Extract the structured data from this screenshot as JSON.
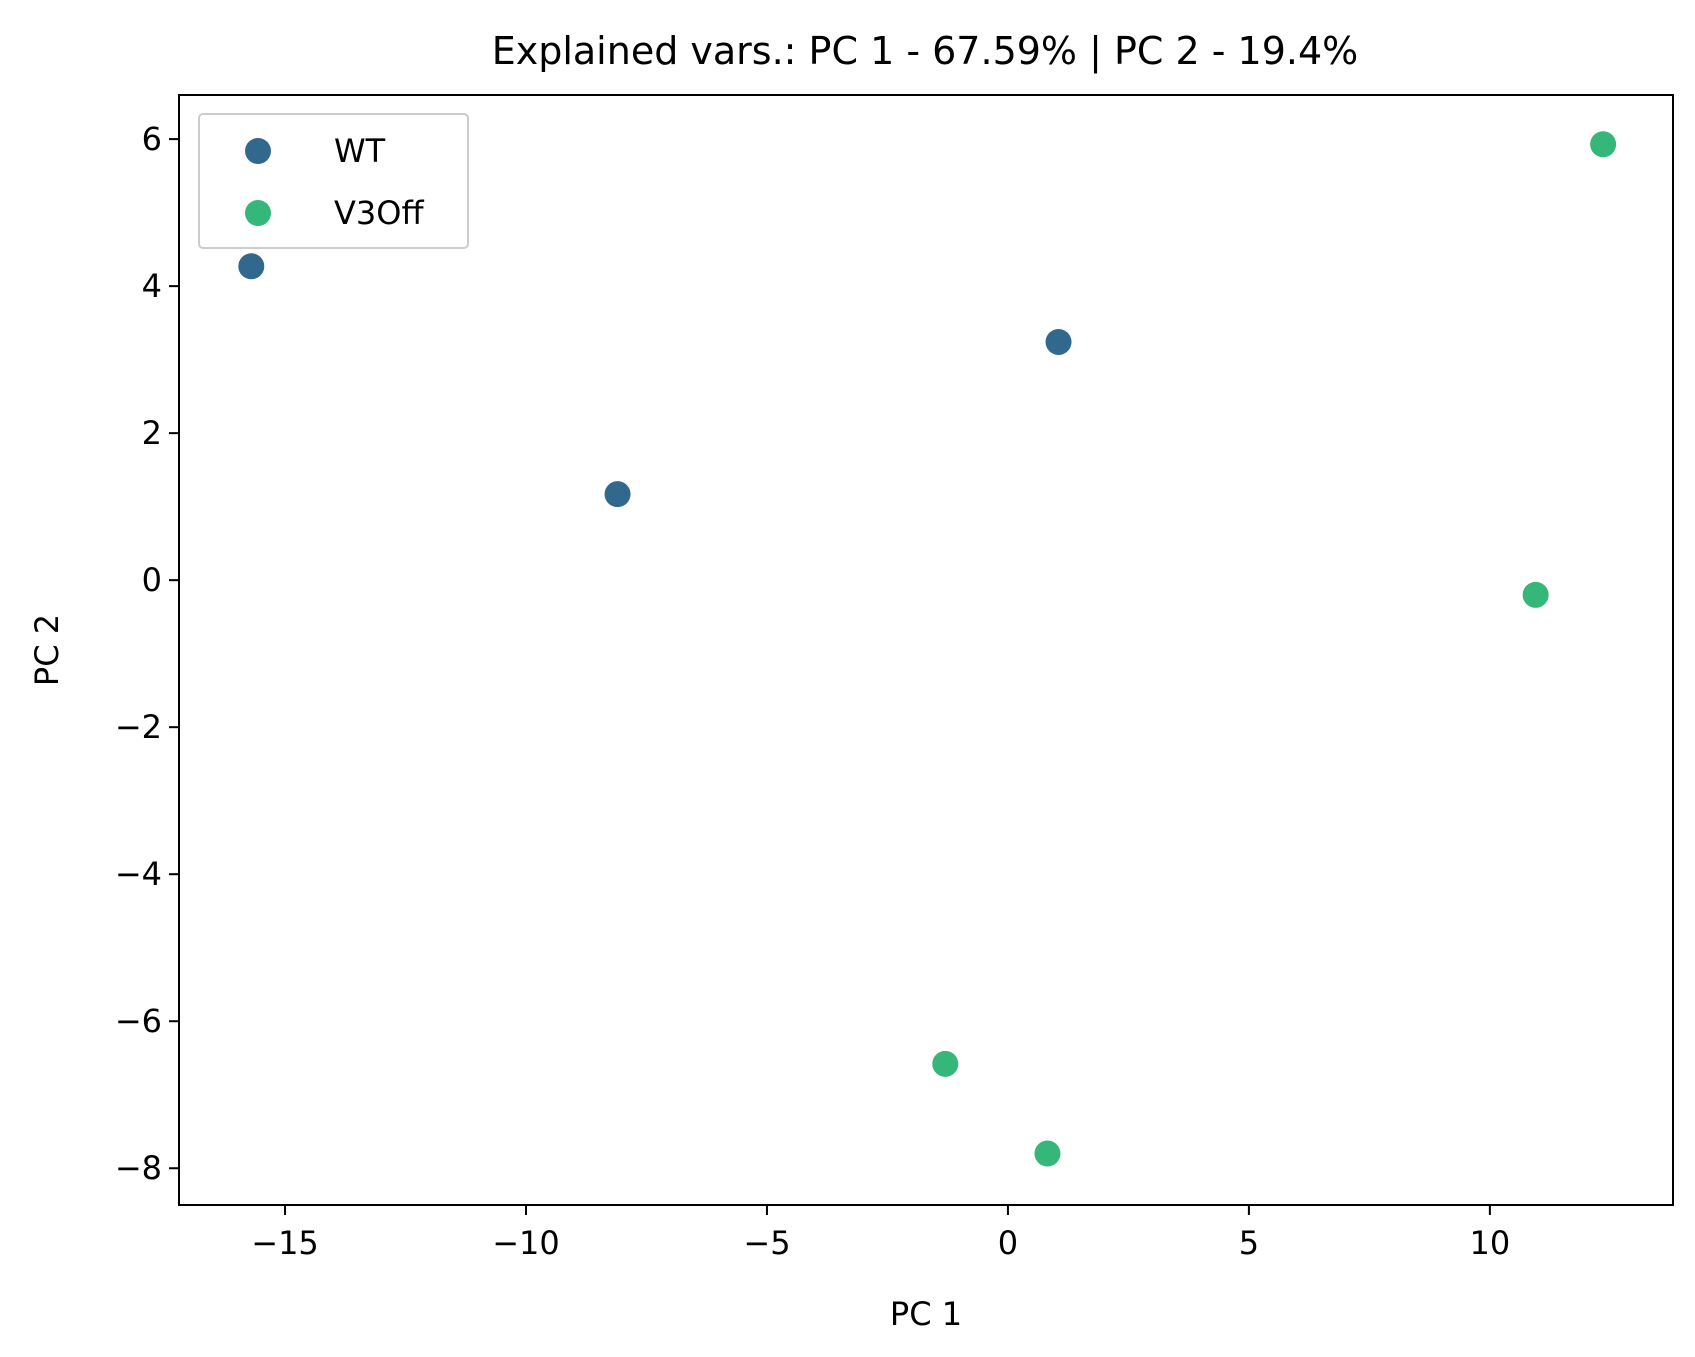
{
  "chart_data": {
    "type": "scatter",
    "title": "Explained vars.: PC 1 - 67.59% | PC 2 -  19.4%",
    "xlabel": "PC 1",
    "ylabel": "PC 2",
    "xlim": [
      -17.2,
      13.8
    ],
    "ylim": [
      -8.5,
      6.6
    ],
    "xticks": [
      -15,
      -10,
      -5,
      0,
      5,
      10
    ],
    "xtick_labels": [
      "−15",
      "−10",
      "−5",
      "0",
      "5",
      "10"
    ],
    "yticks": [
      -8,
      -6,
      -4,
      -2,
      0,
      2,
      4,
      6
    ],
    "ytick_labels": [
      "−8",
      "−6",
      "−4",
      "−2",
      "0",
      "2",
      "4",
      "6"
    ],
    "grid": false,
    "legend_position": "top-left",
    "series": [
      {
        "name": "WT",
        "color": "#31688e",
        "points": [
          {
            "x": -15.7,
            "y": 4.27
          },
          {
            "x": -8.1,
            "y": 1.17
          },
          {
            "x": 1.05,
            "y": 3.24
          }
        ]
      },
      {
        "name": "V3Off",
        "color": "#35b779",
        "points": [
          {
            "x": 12.35,
            "y": 5.93
          },
          {
            "x": 10.95,
            "y": -0.2
          },
          {
            "x": -1.3,
            "y": -6.58
          },
          {
            "x": 0.82,
            "y": -7.8
          }
        ]
      }
    ]
  }
}
